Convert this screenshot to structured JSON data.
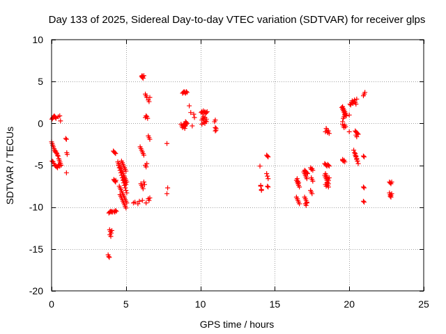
{
  "chart_data": {
    "type": "scatter",
    "title": "Day 133 of 2025, Sidereal Day-to-day VTEC variation (SDTVAR) for receiver glps",
    "xlabel": "GPS time / hours",
    "ylabel": "SDTVAR / TECUs",
    "xlim": [
      0,
      25
    ],
    "ylim": [
      -20,
      10
    ],
    "x_ticks": [
      0,
      5,
      10,
      15,
      20,
      25
    ],
    "y_ticks": [
      -20,
      -15,
      -10,
      -5,
      0,
      5,
      10
    ],
    "x_tick_labels": [
      "0",
      "5",
      "10",
      "15",
      "20",
      "25"
    ],
    "y_tick_labels": [
      "-20",
      "-15",
      "-10",
      "-5",
      "0",
      "5",
      "10"
    ],
    "grid": true,
    "marker": "plus",
    "colors": {
      "marker": "#ff0000",
      "grid": "#a0a0a0",
      "axis": "#000000"
    },
    "series": [
      {
        "name": "glps",
        "x": [
          0.02,
          0.06,
          0.1,
          0.14,
          0.18,
          0.22,
          0.26,
          0.3,
          0.45,
          0.55,
          0.6,
          0.0,
          0.04,
          0.08,
          0.12,
          0.16,
          0.2,
          0.24,
          0.28,
          0.32,
          0.36,
          0.4,
          0.44,
          0.48,
          0.52,
          0.56,
          0.6,
          0.64,
          0.04,
          0.1,
          0.16,
          0.22,
          0.28,
          0.34,
          0.4,
          0.46,
          0.5,
          0.55,
          0.95,
          1.0,
          1.02,
          1.05,
          1.0,
          3.85,
          3.9,
          3.95,
          4.0,
          4.05,
          4.1,
          3.9,
          3.95,
          4.0,
          4.05,
          3.92,
          3.98,
          3.8,
          3.84,
          3.88,
          4.15,
          4.2,
          4.25,
          4.3,
          4.18,
          4.22,
          4.26,
          4.3,
          4.32,
          4.2,
          4.25,
          4.3,
          4.35,
          4.45,
          4.5,
          4.55,
          4.6,
          4.65,
          4.7,
          4.75,
          4.8,
          4.85,
          4.9,
          4.95,
          5.0,
          5.05,
          4.5,
          4.55,
          4.6,
          4.65,
          4.7,
          4.75,
          4.8,
          4.85,
          4.9,
          4.95,
          5.0,
          5.05,
          4.55,
          4.6,
          4.65,
          4.7,
          4.75,
          4.8,
          4.85,
          4.9,
          4.95,
          5.0,
          5.05,
          4.6,
          4.65,
          4.7,
          4.75,
          4.8,
          4.85,
          4.9,
          4.95,
          5.0,
          4.7,
          4.75,
          4.8,
          4.85,
          4.9,
          4.95,
          5.0,
          4.8,
          4.85,
          4.9,
          4.95,
          5.0,
          5.5,
          5.6,
          5.8,
          5.9,
          6.0,
          6.05,
          6.1,
          6.15,
          6.2,
          6.25,
          5.95,
          6.0,
          6.05,
          6.1,
          6.15,
          6.2,
          6.05,
          6.08,
          6.1,
          6.12,
          6.15,
          6.2,
          6.3,
          6.35,
          6.4,
          6.3,
          6.35,
          6.4,
          6.45,
          6.3,
          6.35,
          6.4,
          6.5,
          6.55,
          6.6,
          6.5,
          6.55,
          6.6,
          6.5,
          6.55,
          6.6,
          6.1,
          6.35,
          7.75,
          7.8,
          7.75,
          8.7,
          8.75,
          8.8,
          8.85,
          8.9,
          8.95,
          9.0,
          9.05,
          9.1,
          8.8,
          8.85,
          8.9,
          8.95,
          9.0,
          9.05,
          9.1,
          8.9,
          8.95,
          9.0,
          9.05,
          9.25,
          9.35,
          9.45,
          9.55,
          9.6,
          10.05,
          10.1,
          10.15,
          10.2,
          10.25,
          10.3,
          10.35,
          10.4,
          10.45,
          10.1,
          10.15,
          10.2,
          10.25,
          10.3,
          10.35,
          10.4,
          10.1,
          10.2,
          10.3,
          10.4,
          10.95,
          11.0,
          11.05,
          11.0,
          11.05,
          11.0,
          14.0,
          14.05,
          14.1,
          14.05,
          14.1,
          14.45,
          14.5,
          14.55,
          14.45,
          14.5,
          14.55,
          14.5,
          14.55,
          16.45,
          16.5,
          16.55,
          16.6,
          16.65,
          16.45,
          16.5,
          16.55,
          16.6,
          16.65,
          16.5,
          16.55,
          16.6,
          16.95,
          17.0,
          17.05,
          17.1,
          17.15,
          17.0,
          17.05,
          17.1,
          17.15,
          17.05,
          17.1,
          17.15,
          17.0,
          17.05,
          17.1,
          17.15,
          17.2,
          17.4,
          17.45,
          17.5,
          17.55,
          17.45,
          17.5,
          17.55,
          17.4,
          17.45,
          17.5,
          18.35,
          18.4,
          18.45,
          18.5,
          18.55,
          18.6,
          18.65,
          18.35,
          18.4,
          18.45,
          18.5,
          18.55,
          18.6,
          18.65,
          18.4,
          18.45,
          18.5,
          18.55,
          18.6,
          18.65,
          18.4,
          18.45,
          18.5,
          18.55,
          18.6,
          18.4,
          18.45,
          18.5,
          18.55,
          18.6,
          19.5,
          19.55,
          19.6,
          19.65,
          19.7,
          19.75,
          19.8,
          19.55,
          19.6,
          19.65,
          19.7,
          19.75,
          19.55,
          19.6,
          19.65,
          19.7,
          19.75,
          19.55,
          19.6,
          19.65,
          19.7,
          19.55,
          19.6,
          19.65,
          19.7,
          19.55,
          19.6,
          20.0,
          20.05,
          20.1,
          20.0,
          20.15,
          20.2,
          20.25,
          20.3,
          20.35,
          20.4,
          20.45,
          20.5,
          20.3,
          20.35,
          20.4,
          20.45,
          20.5,
          20.55,
          20.4,
          20.45,
          20.5,
          20.55,
          20.6,
          20.4,
          20.45,
          20.5,
          20.55,
          20.6,
          20.45,
          20.5,
          20.95,
          21.0,
          21.05,
          20.95,
          21.0,
          20.95,
          21.0,
          20.95,
          21.0,
          22.7,
          22.75,
          22.8,
          22.85,
          22.7,
          22.75,
          22.8,
          22.85,
          22.75,
          22.8
        ],
        "y": [
          0.5,
          0.6,
          0.7,
          0.8,
          0.9,
          0.8,
          0.7,
          0.6,
          0.8,
          0.9,
          0.3,
          -2.2,
          -2.4,
          -2.6,
          -2.8,
          -3.0,
          -3.2,
          -3.4,
          -3.3,
          -3.5,
          -3.6,
          -3.8,
          -3.9,
          -4.2,
          -4.4,
          -4.6,
          -4.8,
          -5.0,
          -4.5,
          -4.6,
          -4.8,
          -5.0,
          -5.1,
          -5.2,
          -5.3,
          -5.0,
          -4.9,
          -5.1,
          -1.8,
          -1.9,
          -3.5,
          -3.7,
          -5.9,
          -10.7,
          -10.6,
          -10.5,
          -10.6,
          -10.5,
          -10.6,
          -12.7,
          -12.9,
          -13.1,
          -12.8,
          -13.3,
          -13.5,
          -15.7,
          -15.9,
          -16.0,
          -3.3,
          -3.4,
          -3.5,
          -3.6,
          -6.7,
          -6.8,
          -6.9,
          -7.0,
          -6.8,
          -10.5,
          -10.6,
          -10.4,
          -10.5,
          -4.6,
          -4.8,
          -5.0,
          -5.2,
          -5.4,
          -5.6,
          -5.8,
          -6.0,
          -6.2,
          -6.4,
          -6.6,
          -6.8,
          -7.0,
          -5.0,
          -5.3,
          -5.6,
          -5.9,
          -6.2,
          -6.5,
          -6.8,
          -7.1,
          -7.4,
          -7.7,
          -8.0,
          -8.3,
          -7.5,
          -7.7,
          -7.9,
          -8.1,
          -8.3,
          -8.5,
          -8.7,
          -8.9,
          -9.1,
          -9.3,
          -9.5,
          -8.5,
          -8.7,
          -8.9,
          -9.1,
          -9.3,
          -9.5,
          -9.7,
          -9.9,
          -10.1,
          -4.5,
          -4.7,
          -4.9,
          -5.1,
          -5.3,
          -5.5,
          -5.7,
          -6.5,
          -6.7,
          -6.9,
          -7.1,
          -7.3,
          -9.5,
          -9.4,
          -9.6,
          -9.3,
          -7.2,
          -7.4,
          -7.6,
          -7.8,
          -7.0,
          -7.3,
          -2.8,
          -3.0,
          -3.2,
          -3.4,
          -3.6,
          -3.8,
          5.6,
          5.7,
          5.5,
          5.6,
          5.4,
          5.7,
          3.5,
          3.3,
          3.1,
          0.7,
          0.9,
          0.8,
          0.6,
          -5.0,
          -5.2,
          -4.8,
          2.8,
          2.6,
          3.1,
          -1.5,
          -1.7,
          -1.9,
          -9.0,
          -9.2,
          -8.9,
          -9.2,
          -9.5,
          -2.4,
          -7.7,
          -8.4,
          -0.1,
          -0.3,
          -0.5,
          -0.2,
          -0.4,
          -0.6,
          -0.3,
          -0.1,
          0.0,
          3.6,
          3.7,
          3.8,
          3.7,
          3.6,
          3.8,
          3.7,
          -0.2,
          0.0,
          0.2,
          0.1,
          2.1,
          1.3,
          -0.3,
          1.1,
          0.7,
          1.3,
          1.4,
          1.2,
          1.5,
          1.3,
          1.4,
          1.2,
          1.3,
          1.4,
          0.4,
          0.6,
          0.8,
          0.5,
          0.7,
          0.3,
          0.5,
          -0.1,
          0.1,
          0.0,
          0.2,
          0.2,
          -0.5,
          -0.8,
          0.4,
          -0.6,
          -0.9,
          -5.1,
          -7.5,
          -7.9,
          -7.4,
          -8.0,
          -3.8,
          -3.9,
          -4.0,
          -6.0,
          -6.3,
          -6.6,
          -7.5,
          -7.6,
          -6.8,
          -7.0,
          -7.2,
          -7.4,
          -7.6,
          -8.8,
          -9.0,
          -9.2,
          -9.4,
          -9.6,
          -6.6,
          -6.9,
          -7.1,
          -5.8,
          -6.0,
          -6.2,
          -6.4,
          -6.6,
          -8.8,
          -9.0,
          -9.2,
          -9.4,
          -9.6,
          -9.8,
          -9.5,
          -5.6,
          -5.7,
          -5.8,
          -5.9,
          -6.0,
          -5.3,
          -5.5,
          -5.4,
          -5.6,
          -6.5,
          -6.7,
          -6.9,
          -8.0,
          -8.2,
          -8.4,
          -4.8,
          -4.9,
          -5.0,
          -5.1,
          -4.9,
          -5.0,
          -5.1,
          -6.2,
          -6.4,
          -6.6,
          -6.8,
          -7.0,
          -7.2,
          -6.5,
          -1.0,
          -0.6,
          -0.8,
          -1.1,
          -0.9,
          -1.2,
          -7.3,
          -7.5,
          -7.1,
          -7.4,
          -7.6,
          -6.0,
          -6.2,
          -6.4,
          -6.6,
          -6.8,
          1.9,
          1.7,
          1.5,
          1.3,
          1.1,
          1.0,
          0.9,
          2.0,
          1.8,
          1.6,
          1.4,
          1.2,
          -0.1,
          -0.3,
          -0.5,
          -0.2,
          -0.4,
          0.2,
          0.6,
          0.8,
          1.0,
          -4.3,
          -4.5,
          -4.4,
          -4.6,
          -4.4,
          -4.5,
          1.0,
          2.3,
          2.2,
          -1.0,
          2.5,
          2.7,
          2.4,
          2.6,
          2.8,
          2.5,
          2.3,
          2.9,
          -3.2,
          -3.5,
          -3.8,
          -4.0,
          -4.3,
          -4.5,
          -0.9,
          -1.0,
          -1.1,
          -1.2,
          -1.3,
          -3.6,
          -3.9,
          -4.2,
          -4.5,
          -4.8,
          -1.4,
          -1.6,
          3.3,
          3.5,
          3.7,
          -3.9,
          -4.0,
          -7.6,
          -7.7,
          -9.3,
          -9.4,
          -7.0,
          -7.1,
          -7.2,
          -7.0,
          -8.3,
          -8.5,
          -8.6,
          -8.4,
          -8.7,
          -8.8
        ]
      }
    ]
  }
}
